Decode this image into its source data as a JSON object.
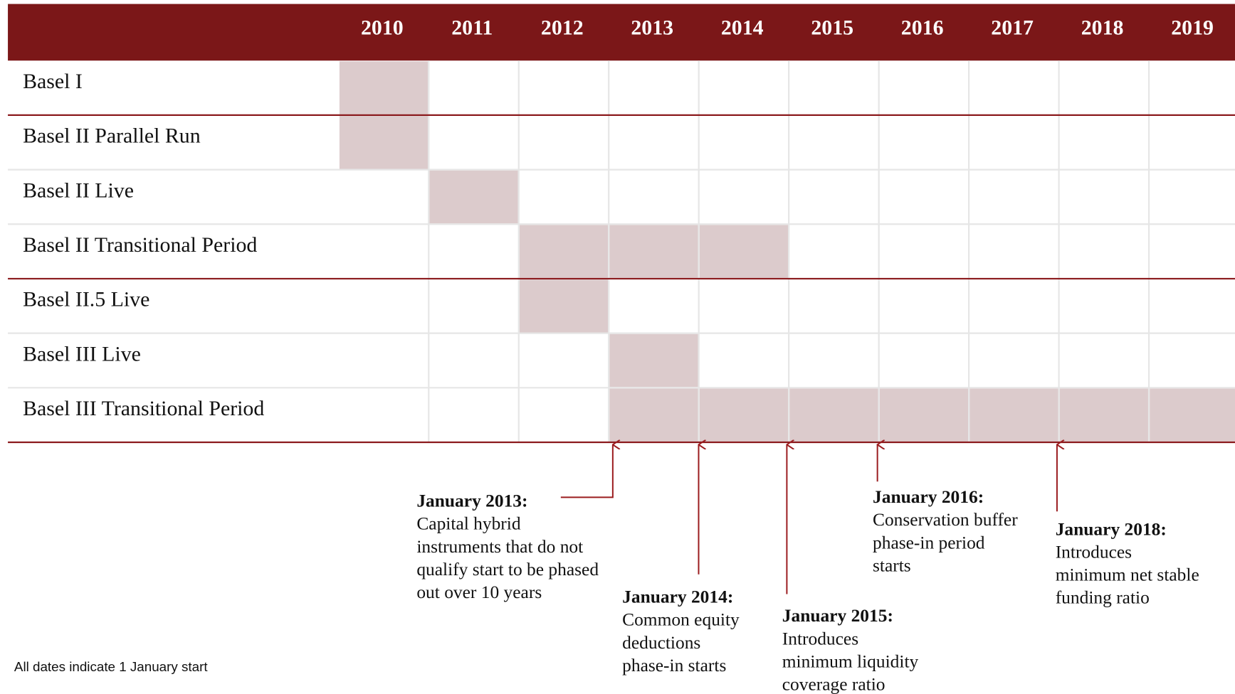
{
  "header": {
    "years": [
      2010,
      2011,
      2012,
      2013,
      2014,
      2015,
      2016,
      2017,
      2018,
      2019
    ]
  },
  "rows": [
    {
      "label": "Basel I",
      "years": [
        2010
      ]
    },
    {
      "label": "Basel II Parallel Run",
      "years": [
        2010
      ]
    },
    {
      "label": "Basel II Live",
      "years": [
        2011
      ]
    },
    {
      "label": "Basel II Transitional Period",
      "years": [
        2012,
        2013,
        2014
      ]
    },
    {
      "label": "Basel II.5 Live",
      "years": [
        2012
      ]
    },
    {
      "label": "Basel III Live",
      "years": [
        2013
      ]
    },
    {
      "label": "Basel III Transitional Period",
      "years": [
        2013,
        2014,
        2015,
        2016,
        2017,
        2018,
        2019
      ]
    }
  ],
  "annotations": [
    {
      "title": "January 2013:",
      "lines": [
        "Capital hybrid",
        "instruments that do not",
        "qualify start to be phased",
        "out over 10 years"
      ]
    },
    {
      "title": "January 2014:",
      "lines": [
        "Common equity",
        "deductions",
        "phase-in starts"
      ]
    },
    {
      "title": "January 2015:",
      "lines": [
        "Introduces",
        "minimum liquidity",
        "coverage ratio"
      ]
    },
    {
      "title": "January 2016:",
      "lines": [
        "Conservation buffer",
        "phase-in period",
        "starts"
      ]
    },
    {
      "title": "January 2018:",
      "lines": [
        "Introduces",
        "minimum net stable",
        "funding ratio"
      ]
    }
  ],
  "footnote": "All dates indicate 1 January start"
}
